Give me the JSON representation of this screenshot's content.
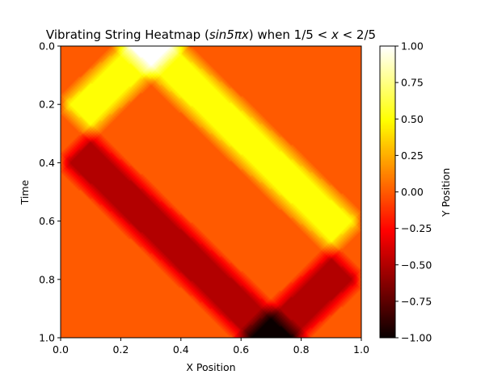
{
  "chart_data": {
    "type": "heatmap",
    "title_parts": {
      "prefix": "Vibrating String Heatmap (",
      "func": "sin5",
      "pi": "π",
      "x": "x",
      "middle": ") when 1/5 < ",
      "x2": "x",
      "suffix": " < 2/5"
    },
    "xlabel": "X Position",
    "ylabel": "Time",
    "colorbar_label": "Y Position",
    "xlim": [
      0.0,
      1.0
    ],
    "ylim": [
      1.0,
      0.0
    ],
    "clim": [
      -1.0,
      1.0
    ],
    "colormap": "hot",
    "x_ticks": [
      0.0,
      0.2,
      0.4,
      0.6,
      0.8,
      1.0
    ],
    "x_tick_labels": [
      "0.0",
      "0.2",
      "0.4",
      "0.6",
      "0.8",
      "1.0"
    ],
    "y_ticks": [
      0.0,
      0.2,
      0.4,
      0.6,
      0.8,
      1.0
    ],
    "y_tick_labels": [
      "0.0",
      "0.2",
      "0.4",
      "0.6",
      "0.8",
      "1.0"
    ],
    "colorbar_ticks": [
      1.0,
      0.75,
      0.5,
      0.25,
      0.0,
      -0.25,
      -0.5,
      -0.75,
      -1.0
    ],
    "colorbar_tick_labels": [
      "1.00",
      "0.75",
      "0.50",
      "0.25",
      "0.00",
      "−0.25",
      "−0.50",
      "−0.75",
      "−1.00"
    ],
    "pulse": {
      "initial_interval": [
        0.2,
        0.4
      ],
      "initial_center": 0.3,
      "amplitude": 1.0,
      "wave_speed": 1.0,
      "boundary": "fixed ends at x=0 and x=1"
    },
    "grid": false
  }
}
